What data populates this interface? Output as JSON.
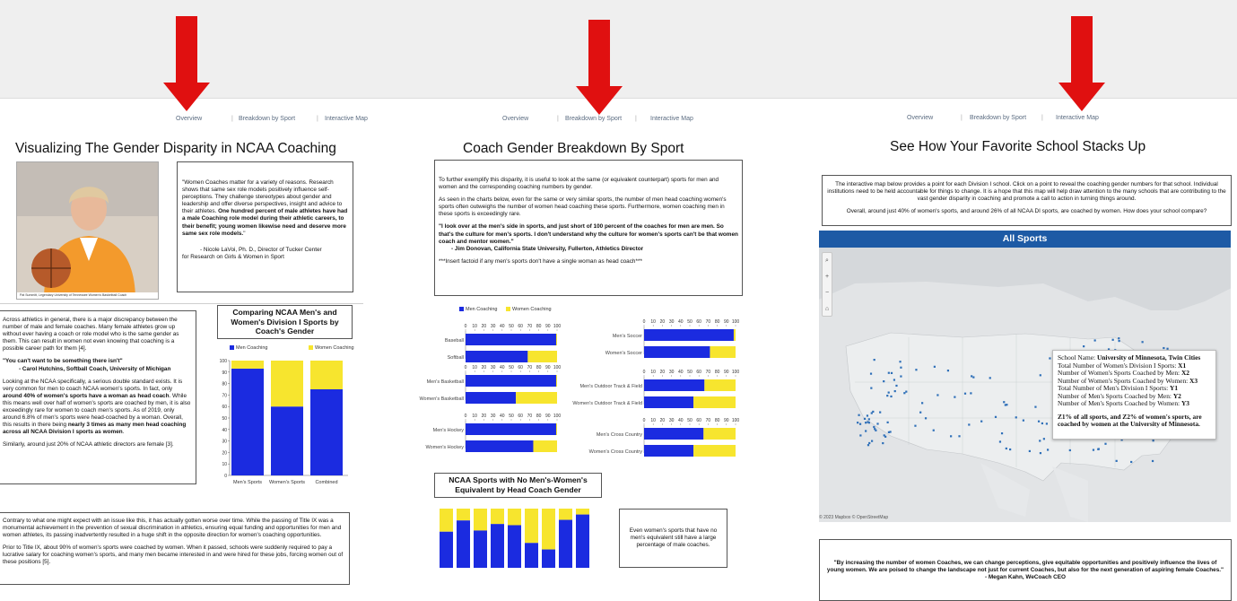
{
  "colors": {
    "men": "#1b2be0",
    "women": "#f7e52e",
    "arrow": "#e01010",
    "map_header": "#1d5aa5"
  },
  "nav": {
    "items": [
      "Overview",
      "Breakdown by Sport",
      "Interactive Map"
    ]
  },
  "overview": {
    "title": "Visualizing The Gender Disparity in NCAA Coaching",
    "photo_caption": "Pat Summitt, Legendary University of Tennessee Women's Basketball Coach",
    "quote_box": {
      "p1_plain": "\"Women Coaches matter for a variety of reasons. Research shows that same sex role models positively influence self-perceptions. They challenge stereotypes about gender and leadership and offer diverse perspectives, insight and advice to their athletes. ",
      "p1_bold": "One hundred percent of male athletes have had a male Coaching role model during their athletic careers, to their benefit; young women likewise need and deserve more same sex role models.",
      "p1_end": "\"",
      "attribution_1": "- Nicole LaVoi, Ph. D., Director of Tucker Center",
      "attribution_2": "for Research on Girls & Women in Sport"
    },
    "body": {
      "p1": "Across athletics in general, there is a major discrepancy between the number of male and female coaches. Many female athletes grow up without ever having a coach or role model who is the same gender as them. This can result in women not even knowing that coaching is a possible career path for them [4].",
      "quote": "\"You can't want to be something there isn't\"",
      "quote_attr": "- Carol Hutchins, Softball Coach, University of Michigan",
      "p2_a": "Looking at the NCAA specifically, a serious double standard exists. It is very common for men to coach NCAA women's sports. In fact, only ",
      "p2_b": "around 40% of women's sports have a woman as head coach",
      "p2_c": ". While this means well over half of women's sports are coached by men, it is also exceedingly rare for women to coach men's sports. As of 2019, only around 6.8% of men's sports were head-coached by a woman. Overall, this results in there being ",
      "p2_d": "nearly 3 times as many men head coaching across all NCAA Division I sports as women",
      "p2_e": ".",
      "p3": "Similarly, around just 20% of NCAA athletic directors are female [3]."
    },
    "bottom": {
      "p1": "Contrary to what one might expect with an issue like this, it has actually gotten worse over time. While the passing of Title IX was a monumental achievement in the prevention of sexual discrimination in athletics, ensuring equal funding and opportunities for men and women athletes, its passing inadvertently resulted in a huge shift in the opposite direction for women's coaching opportunities.",
      "p2": "Prior to Title IX, about 90% of women's sports were coached by women. When it passed, schools were suddenly required to pay a lucrative salary for coaching women's sports, and many men became interested in and were hired for these jobs, forcing women out of these positions [5]."
    },
    "chart_title": "Comparing NCAA Men's and Women's Division I Sports by Coach's Gender",
    "legend_men": "Men Coaching",
    "legend_women": "Women Coaching"
  },
  "breakdown": {
    "title": "Coach Gender Breakdown By Sport",
    "intro_p1": "To further exemplify this disparity, it is useful to look at the same (or equivalent counterpart) sports for men and women and the corresponding coaching numbers by gender.",
    "intro_p2": "As seen in the charts below, even for the same or very similar sports, the number of men head coaching women's sports often outweighs the number of women head coaching these sports. Furthermore, women coaching men in these sports is exceedingly rare.",
    "quote": "\"I look over at the men's side in sports, and just short of 100 percent of the coaches for men are men. So that's the culture for men's sports. I don't understand why the culture for women's sports can't be that women coach and mentor women.\"",
    "quote_attr": "- Jim Donovan, California State University, Fullerton, Athletics Director",
    "factoid": "***Insert factoid if any men's sports don't have a single woman as head coach***",
    "legend_men": "Men Coaching",
    "legend_women": "Women Coaching",
    "no_equiv_title": "NCAA Sports with No Men's-Women's Equivalent by Head Coach Gender",
    "no_equiv_note": "Even women's sports that have no men's equivalent still have a large percentage of male coaches."
  },
  "map_page": {
    "title": "See How Your Favorite School Stacks Up",
    "intro_p1": "The interactive map below provides a point for each Division I school. Click on a point to reveal the coaching gender numbers for that school. Individual institutions need to be held accountable for things to change. It is a hope that this map will help draw attention to the many schools that are contributing to the vast gender disparity in coaching and promote a call to action in turning things around.",
    "intro_p2": "Overall, around just 40% of women's sports, and around 26% of all NCAA DI sports, are coached by women. How does your school compare?",
    "map_header": "All Sports",
    "attribution": "© 2023 Mapbox  © OpenStreetMap",
    "tooltip": {
      "school_label": "School Name: ",
      "school_value": "University of Minnesota, Twin Cities",
      "l1_label": "Total Number of Women's Division I Sports: ",
      "l1_value": "X1",
      "l2_label": "Number of Women's Sports Coached by Men: ",
      "l2_value": "X2",
      "l3_label": "Number of Women's Sports Coached by Women: ",
      "l3_value": "X3",
      "l4_label": "Total Number of Men's Division I Sports: ",
      "l4_value": "Y1",
      "l5_label": "Number of Men's Sports Coached by Men: ",
      "l5_value": "Y2",
      "l6_label": "Number of Men's Sports Coached by Women: ",
      "l6_value": "Y3",
      "summary": "Z1% of all sports, and Z2% of women's sports, are coached by women at the University of Minnesota."
    },
    "quote": "\"By increasing the number of women Coaches, we can change perceptions, give equitable opportunities and positively influence the lives of young women. We are poised to change the landscape not just for current Coaches, but also for the next generation of aspiring female Coaches.\"",
    "quote_attr": "- Megan Kahn, WeCoach CEO"
  },
  "chart_data": [
    {
      "type": "bar",
      "stacked": true,
      "title": "Comparing NCAA Men's and Women's Division I Sports by Coach's Gender",
      "categories": [
        "Men's Sports",
        "Women's Sports",
        "Combined"
      ],
      "series": [
        {
          "name": "Men Coaching",
          "values": [
            93,
            60,
            75
          ]
        },
        {
          "name": "Women Coaching",
          "values": [
            7,
            40,
            25
          ]
        }
      ],
      "ylim": [
        0,
        100
      ],
      "yticks": [
        0,
        10,
        20,
        30,
        40,
        50,
        60,
        70,
        80,
        90,
        100
      ]
    },
    {
      "type": "bar",
      "orientation": "horizontal",
      "stacked": true,
      "title": "",
      "xticks": [
        0,
        10,
        20,
        30,
        40,
        50,
        60,
        70,
        80,
        90,
        100
      ],
      "panels": [
        {
          "rows": [
            {
              "label": "Baseball",
              "men": 99
            },
            {
              "label": "Softball",
              "men": 68
            }
          ]
        },
        {
          "rows": [
            {
              "label": "Men's Soccer",
              "men": 98
            },
            {
              "label": "Women's Soccer",
              "men": 72
            }
          ]
        },
        {
          "rows": [
            {
              "label": "Men's Basketball",
              "men": 99
            },
            {
              "label": "Women's Basketball",
              "men": 55
            }
          ]
        },
        {
          "rows": [
            {
              "label": "Men's Outdoor Track & Field",
              "men": 66
            },
            {
              "label": "Women's Outdoor Track & Field",
              "men": 54
            }
          ]
        },
        {
          "rows": [
            {
              "label": "Men's Hockey",
              "men": 99
            },
            {
              "label": "Women's Hockey",
              "men": 74
            }
          ]
        },
        {
          "rows": [
            {
              "label": "Men's Cross Country",
              "men": 65
            },
            {
              "label": "Women's Cross Country",
              "men": 54
            }
          ]
        }
      ]
    },
    {
      "type": "bar",
      "stacked": true,
      "title": "NCAA Sports with No Men's-Women's Equivalent by Head Coach Gender",
      "men_values": [
        61,
        80,
        63,
        74,
        72,
        42,
        31,
        81,
        90
      ]
    }
  ]
}
